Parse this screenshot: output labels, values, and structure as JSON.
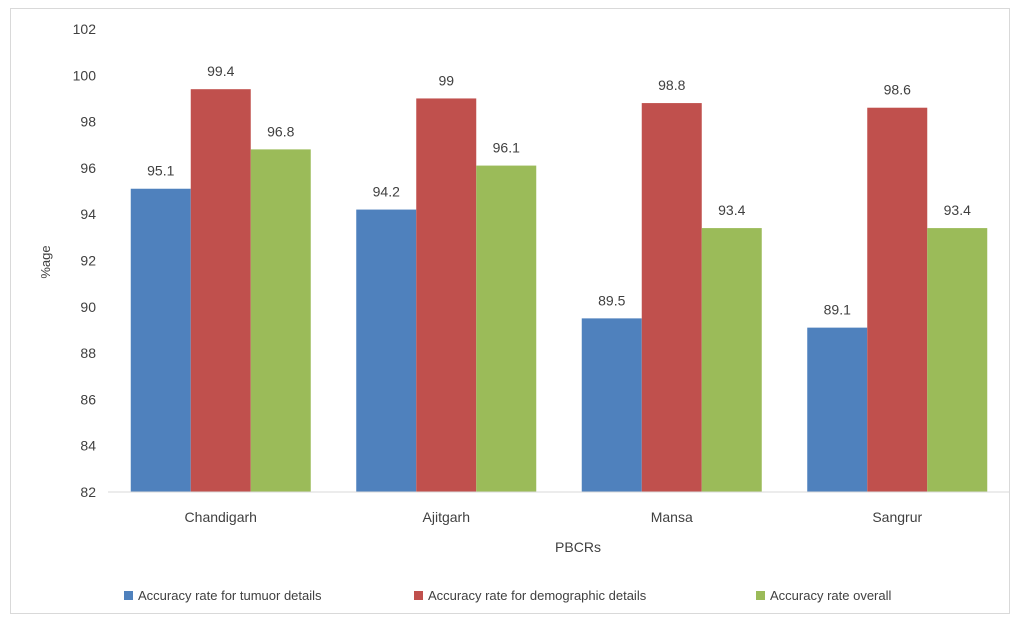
{
  "chart_data": {
    "type": "bar",
    "title": "",
    "xlabel": "PBCRs",
    "ylabel": "%age",
    "ylim": [
      82,
      102
    ],
    "yticks": [
      82,
      84,
      86,
      88,
      90,
      92,
      94,
      96,
      98,
      100,
      102
    ],
    "categories": [
      "Chandigarh",
      "Ajitgarh",
      "Mansa",
      "Sangrur"
    ],
    "series": [
      {
        "name": "Accuracy rate for tumuor details",
        "color": "#4f81bd",
        "values": [
          95.1,
          94.2,
          89.5,
          89.1
        ]
      },
      {
        "name": "Accuracy rate for demographic details",
        "color": "#c0504d",
        "values": [
          99.4,
          99,
          98.8,
          98.6
        ]
      },
      {
        "name": "Accuracy rate overall",
        "color": "#9bbb59",
        "values": [
          96.8,
          96.1,
          93.4,
          93.4
        ]
      }
    ],
    "grid": false,
    "legend": "bottom"
  }
}
